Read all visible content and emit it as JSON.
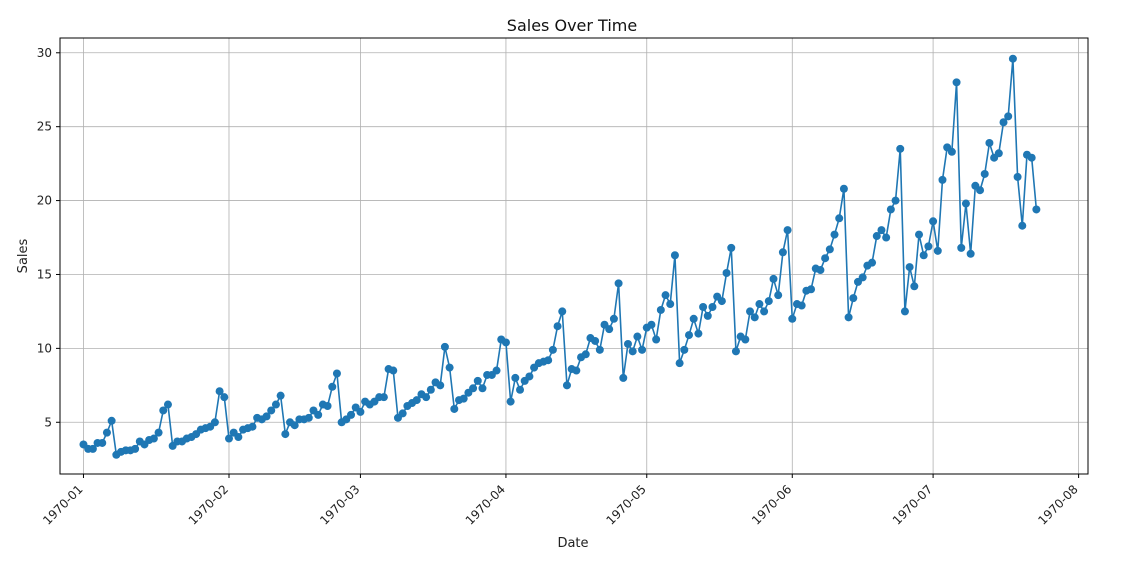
{
  "chart_data": {
    "type": "line",
    "title": "Sales Over Time",
    "xlabel": "Date",
    "ylabel": "Sales",
    "x_tick_labels": [
      "1970-01",
      "1970-02",
      "1970-03",
      "1970-04",
      "1970-05",
      "1970-06",
      "1970-07",
      "1970-08"
    ],
    "y_ticks": [
      5,
      10,
      15,
      20,
      25,
      30
    ],
    "ylim": [
      1.5,
      31.0
    ],
    "xlim": [
      "1969-12-27",
      "1970-08-03"
    ],
    "grid": true,
    "legend": "none",
    "marker": "circle",
    "color": "#1f77b4",
    "series": [
      {
        "x_start": "1970-01-01",
        "x_step_days": 1,
        "values": [
          3.5,
          3.2,
          3.2,
          3.6,
          3.6,
          4.3,
          5.1,
          2.8,
          3.0,
          3.1,
          3.1,
          3.2,
          3.7,
          3.5,
          3.8,
          3.9,
          4.3,
          5.8,
          6.2,
          3.4,
          3.7,
          3.7,
          3.9,
          4.0,
          4.2,
          4.5,
          4.6,
          4.7,
          5.0,
          7.1,
          6.7,
          3.9,
          4.3,
          4.0,
          4.5,
          4.6,
          4.7,
          5.3,
          5.2,
          5.4,
          5.8,
          6.2,
          6.8,
          4.2,
          5.0,
          4.8,
          5.2,
          5.2,
          5.3,
          5.8,
          5.5,
          6.2,
          6.1,
          7.4,
          8.3,
          5.0,
          5.2,
          5.5,
          6.0,
          5.7,
          6.4,
          6.2,
          6.4,
          6.7,
          6.7,
          8.6,
          8.5,
          5.3,
          5.6,
          6.1,
          6.3,
          6.5,
          6.9,
          6.7,
          7.2,
          7.7,
          7.5,
          10.1,
          8.7,
          5.9,
          6.5,
          6.6,
          7.0,
          7.3,
          7.8,
          7.3,
          8.2,
          8.2,
          8.5,
          10.6,
          10.4,
          6.4,
          8.0,
          7.2,
          7.8,
          8.1,
          8.7,
          9.0,
          9.1,
          9.2,
          9.9,
          11.5,
          12.5,
          7.5,
          8.6,
          8.5,
          9.4,
          9.6,
          10.7,
          10.5,
          9.9,
          11.6,
          11.3,
          12.0,
          14.4,
          8.0,
          10.3,
          9.8,
          10.8,
          9.9,
          11.4,
          11.6,
          10.6,
          12.6,
          13.6,
          13.0,
          16.3,
          9.0,
          9.9,
          10.9,
          12.0,
          11.0,
          12.8,
          12.2,
          12.8,
          13.5,
          13.2,
          15.1,
          16.8,
          9.8,
          10.8,
          10.6,
          12.5,
          12.1,
          13.0,
          12.5,
          13.2,
          14.7,
          13.6,
          16.5,
          18.0,
          12.0,
          13.0,
          12.9,
          13.9,
          14.0,
          15.4,
          15.3,
          16.1,
          16.7,
          17.7,
          18.8,
          20.8,
          12.1,
          13.4,
          14.5,
          14.8,
          15.6,
          15.8,
          17.6,
          18.0,
          17.5,
          19.4,
          20.0,
          23.5,
          12.5,
          15.5,
          14.2,
          17.7,
          16.3,
          16.9,
          18.6,
          16.6,
          21.4,
          23.6,
          23.3,
          28.0,
          16.8,
          19.8,
          16.4,
          21.0,
          20.7,
          21.8,
          23.9,
          22.9,
          23.2,
          25.3,
          25.7,
          29.6,
          21.6,
          18.3,
          23.1,
          22.9,
          19.4
        ]
      }
    ]
  }
}
